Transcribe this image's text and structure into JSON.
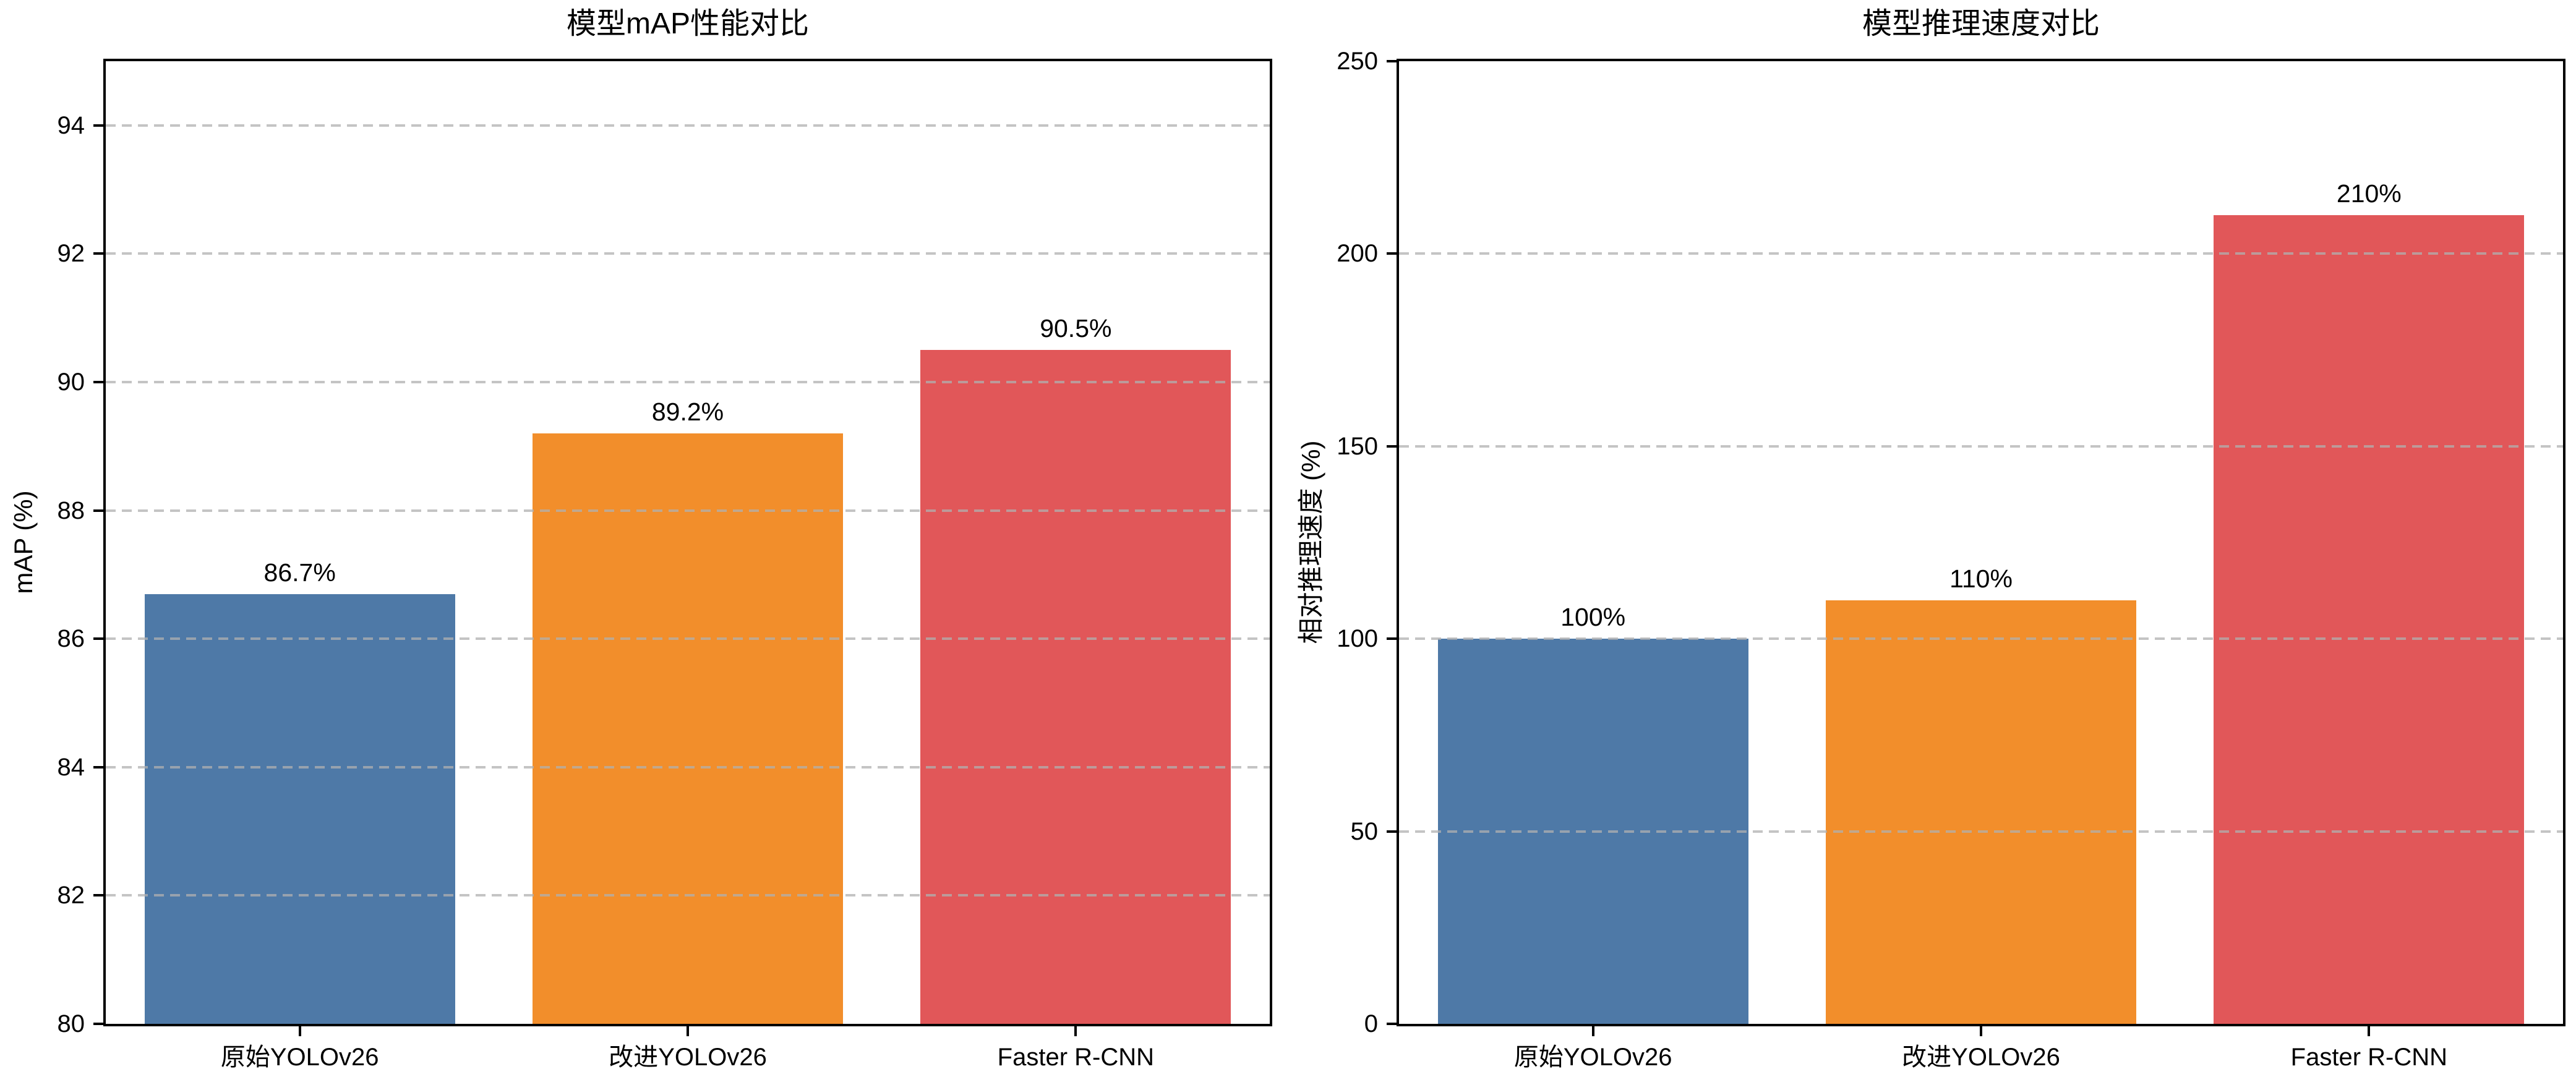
{
  "styles": {
    "background": "#ffffff",
    "spine_color": "#000000",
    "grid_color": "#b0b0b0",
    "text_color": "#000000"
  },
  "chart_data": [
    {
      "type": "bar",
      "title": "模型mAP性能对比",
      "ylabel": "mAP (%)",
      "xlabel": "",
      "categories": [
        "原始YOLOv26",
        "改进YOLOv26",
        "Faster R-CNN"
      ],
      "values": [
        86.7,
        89.2,
        90.5
      ],
      "value_labels": [
        "86.7%",
        "89.2%",
        "90.5%"
      ],
      "bar_colors": [
        "#4E79A7",
        "#F28E2B",
        "#E15759"
      ],
      "ylim": [
        80,
        95
      ],
      "yticks": [
        80,
        82,
        84,
        86,
        88,
        90,
        92,
        94
      ],
      "grid": "dashed-horizontal",
      "legend": "none"
    },
    {
      "type": "bar",
      "title": "模型推理速度对比",
      "ylabel": "相对推理速度 (%)",
      "xlabel": "",
      "categories": [
        "原始YOLOv26",
        "改进YOLOv26",
        "Faster R-CNN"
      ],
      "values": [
        100,
        110,
        210
      ],
      "value_labels": [
        "100%",
        "110%",
        "210%"
      ],
      "bar_colors": [
        "#4E79A7",
        "#F28E2B",
        "#E15759"
      ],
      "ylim": [
        0,
        250
      ],
      "yticks": [
        0,
        50,
        100,
        150,
        200,
        250
      ],
      "grid": "dashed-horizontal",
      "legend": "none"
    }
  ]
}
